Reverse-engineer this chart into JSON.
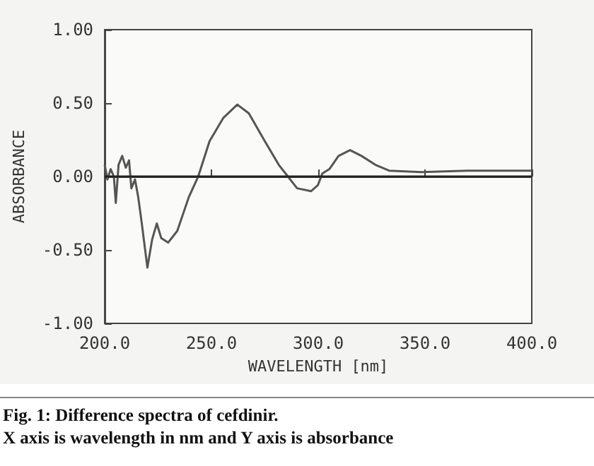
{
  "chart_data": {
    "type": "line",
    "xlabel": "WAVELENGTH [nm]",
    "ylabel": "ABSORBANCE",
    "annotations": [
      "Fig. 1: Difference spectra of cefdinir.",
      "X axis is wavelength in nm and Y axis is absorbance"
    ],
    "series": [
      {
        "color": "#555555",
        "x": [
          200,
          201.3,
          202.8,
          204.3,
          205.2,
          206.5,
          208.2,
          209.9,
          211.4,
          212.5,
          214.2,
          215.7,
          217.2,
          220,
          222.2,
          224.4,
          226.5,
          229.7,
          234,
          239.4,
          243.8,
          249.1,
          255.6,
          262.1,
          267.5,
          275,
          281.5,
          285.8,
          290.1,
          296.6,
          299.8,
          301.9,
          305.2,
          309.5,
          314.9,
          320.3,
          326.7,
          333.2,
          348.3,
          369.8,
          400
        ],
        "values": [
          0.08,
          -0.02,
          0.05,
          0,
          -0.18,
          0.08,
          0.14,
          0.06,
          0.11,
          -0.08,
          -0.02,
          -0.14,
          -0.3,
          -0.62,
          -0.43,
          -0.32,
          -0.42,
          -0.45,
          -0.37,
          -0.14,
          0,
          0.24,
          0.4,
          0.49,
          0.43,
          0.24,
          0.08,
          0,
          -0.08,
          -0.1,
          -0.06,
          0.02,
          0.05,
          0.14,
          0.18,
          0.14,
          0.08,
          0.04,
          0.03,
          0.04,
          0.04
        ]
      }
    ],
    "xlim": [
      200,
      400
    ],
    "xticks": [
      {
        "value": 200,
        "label": "200.0"
      },
      {
        "value": 250,
        "label": "250.0"
      },
      {
        "value": 300,
        "label": "300.0"
      },
      {
        "value": 350,
        "label": "350.0"
      },
      {
        "value": 400,
        "label": "400.0"
      }
    ],
    "ylim": [
      -1,
      1
    ],
    "yticks": [
      {
        "value": -1,
        "label": "-1.00"
      },
      {
        "value": -0.5,
        "label": "-0.50"
      },
      {
        "value": 0,
        "label": "0.00"
      },
      {
        "value": 0.5,
        "label": "0.50"
      },
      {
        "value": 1,
        "label": "1.00"
      }
    ],
    "ref_lines": [
      {
        "axis": "y",
        "value": 0,
        "color": "#222222"
      }
    ],
    "grid": false,
    "marker": "none",
    "line_style": "solid"
  }
}
